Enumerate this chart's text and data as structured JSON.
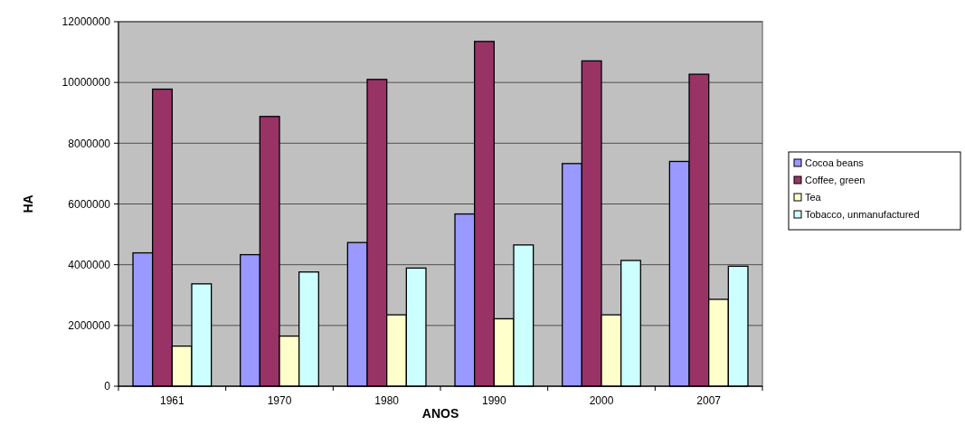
{
  "chart_data": {
    "type": "bar",
    "xlabel": "ANOS",
    "ylabel": "HA",
    "categories": [
      "1961",
      "1970",
      "1980",
      "1990",
      "2000",
      "2007"
    ],
    "series": [
      {
        "name": "Cocoa beans",
        "color": "#9999ff",
        "values": [
          4390000,
          4330000,
          4730000,
          5670000,
          7330000,
          7400000
        ]
      },
      {
        "name": "Coffee, green",
        "color": "#993366",
        "values": [
          9780000,
          8880000,
          10100000,
          11350000,
          10710000,
          10270000
        ]
      },
      {
        "name": "Tea",
        "color": "#ffffcc",
        "values": [
          1320000,
          1650000,
          2350000,
          2220000,
          2350000,
          2860000
        ]
      },
      {
        "name": "Tobacco, unmanufactured",
        "color": "#ccffff",
        "values": [
          3370000,
          3760000,
          3890000,
          4650000,
          4140000,
          3950000
        ]
      }
    ],
    "ylim": [
      0,
      12000000
    ],
    "yticks": [
      0,
      2000000,
      4000000,
      6000000,
      8000000,
      10000000,
      12000000
    ],
    "grid": "y",
    "legend": "right"
  }
}
